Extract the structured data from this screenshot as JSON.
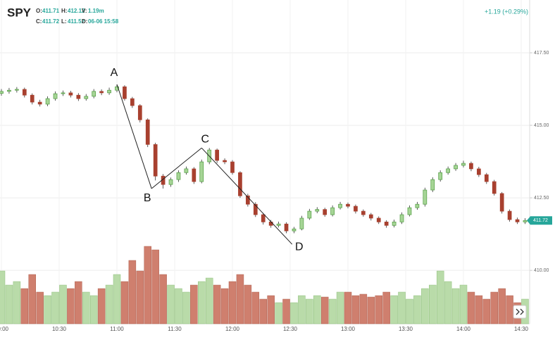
{
  "header": {
    "symbol": "SPY",
    "fields": [
      {
        "label": "O:",
        "value": "411.71"
      },
      {
        "label": "H:",
        "value": "412.12"
      },
      {
        "label": "V:",
        "value": "1.19m"
      },
      {
        "label": "C:",
        "value": "411.72"
      },
      {
        "label": "L:",
        "value": "411.52"
      },
      {
        "label": "D:",
        "value": "06-06 15:58"
      }
    ],
    "change": "+1.19 (+0.29%)"
  },
  "chart_data": {
    "type": "candlestick",
    "x": [
      "10:00",
      "10:04",
      "10:08",
      "10:12",
      "10:16",
      "10:20",
      "10:24",
      "10:28",
      "10:32",
      "10:36",
      "10:40",
      "10:44",
      "10:48",
      "10:52",
      "10:56",
      "11:00",
      "11:04",
      "11:08",
      "11:12",
      "11:16",
      "11:20",
      "11:24",
      "11:28",
      "11:32",
      "11:36",
      "11:40",
      "11:44",
      "11:48",
      "11:52",
      "11:56",
      "12:00",
      "12:04",
      "12:08",
      "12:12",
      "12:16",
      "12:20",
      "12:24",
      "12:28",
      "12:32",
      "12:36",
      "12:40",
      "12:44",
      "12:48",
      "12:52",
      "12:56",
      "13:00",
      "13:04",
      "13:08",
      "13:12",
      "13:16",
      "13:20",
      "13:24",
      "13:28",
      "13:32",
      "13:36",
      "13:40",
      "13:44",
      "13:48",
      "13:52",
      "13:56",
      "14:00",
      "14:04",
      "14:08",
      "14:12",
      "14:16",
      "14:20",
      "14:24",
      "14:28",
      "14:32"
    ],
    "open": [
      416.1,
      416.17,
      416.21,
      416.24,
      416.04,
      415.8,
      415.73,
      415.92,
      416.09,
      416.12,
      416.04,
      415.92,
      416.0,
      416.17,
      416.12,
      416.21,
      416.33,
      415.92,
      415.68,
      415.19,
      414.34,
      413.25,
      412.96,
      413.13,
      413.37,
      413.5,
      413.06,
      413.74,
      414.15,
      413.79,
      413.74,
      413.37,
      412.57,
      412.28,
      411.92,
      411.67,
      411.55,
      411.6,
      411.36,
      411.43,
      411.8,
      412.04,
      412.1,
      411.92,
      412.16,
      412.28,
      412.21,
      412.04,
      411.92,
      411.8,
      411.67,
      411.55,
      411.67,
      411.92,
      412.16,
      412.28,
      412.77,
      413.13,
      413.37,
      413.5,
      413.62,
      413.69,
      413.5,
      413.3,
      413.06,
      412.65,
      412.04,
      411.75,
      411.67
    ],
    "high": [
      416.25,
      416.29,
      416.32,
      416.3,
      416.1,
      415.88,
      416.0,
      416.17,
      416.2,
      416.19,
      416.11,
      416.08,
      416.25,
      416.24,
      416.3,
      416.41,
      416.38,
      415.98,
      415.73,
      415.24,
      414.4,
      413.32,
      413.2,
      413.45,
      413.58,
      413.56,
      413.82,
      414.22,
      414.2,
      413.86,
      413.8,
      413.42,
      412.64,
      412.35,
      411.98,
      411.74,
      411.68,
      411.66,
      411.5,
      411.88,
      412.12,
      412.18,
      412.16,
      412.24,
      412.36,
      412.34,
      412.27,
      412.1,
      411.98,
      411.86,
      411.73,
      411.75,
      412.0,
      412.24,
      412.36,
      412.85,
      413.21,
      413.45,
      413.58,
      413.7,
      413.78,
      413.75,
      413.57,
      413.36,
      413.12,
      412.7,
      412.1,
      411.82,
      411.8
    ],
    "low": [
      416.02,
      416.09,
      416.13,
      415.96,
      415.72,
      415.65,
      415.66,
      415.85,
      416.01,
      415.96,
      415.84,
      415.85,
      415.93,
      416.04,
      416.05,
      416.14,
      415.85,
      415.6,
      415.1,
      414.25,
      413.1,
      412.82,
      412.88,
      413.05,
      413.3,
      412.98,
      413.0,
      413.66,
      413.7,
      413.66,
      413.3,
      412.5,
      412.2,
      411.84,
      411.58,
      411.47,
      411.48,
      411.28,
      411.28,
      411.38,
      411.74,
      411.97,
      411.85,
      411.86,
      412.1,
      412.14,
      411.96,
      411.85,
      411.72,
      411.6,
      411.47,
      411.48,
      411.6,
      411.86,
      412.09,
      412.2,
      412.7,
      413.06,
      413.3,
      413.43,
      413.55,
      413.42,
      413.22,
      412.98,
      412.58,
      411.96,
      411.68,
      411.6,
      411.6
    ],
    "close": [
      416.17,
      416.21,
      416.24,
      416.04,
      415.8,
      415.73,
      415.92,
      416.09,
      416.12,
      416.04,
      415.92,
      416.0,
      416.17,
      416.12,
      416.21,
      416.33,
      415.92,
      415.68,
      415.19,
      414.34,
      413.25,
      412.96,
      413.13,
      413.37,
      413.5,
      413.06,
      413.74,
      414.15,
      413.79,
      413.74,
      413.37,
      412.57,
      412.28,
      411.92,
      411.67,
      411.55,
      411.6,
      411.36,
      411.43,
      411.8,
      412.04,
      412.1,
      411.92,
      412.16,
      412.28,
      412.21,
      412.04,
      411.92,
      411.8,
      411.67,
      411.55,
      411.67,
      411.92,
      412.16,
      412.28,
      412.77,
      413.13,
      413.37,
      413.5,
      413.62,
      413.69,
      413.5,
      413.3,
      413.06,
      412.65,
      412.04,
      411.75,
      411.67,
      411.72
    ],
    "volume": [
      75,
      55,
      60,
      50,
      70,
      45,
      40,
      45,
      55,
      50,
      60,
      45,
      40,
      50,
      55,
      70,
      60,
      90,
      75,
      110,
      105,
      70,
      55,
      50,
      45,
      55,
      60,
      65,
      55,
      50,
      60,
      70,
      55,
      45,
      35,
      40,
      30,
      35,
      30,
      40,
      35,
      40,
      38,
      35,
      45,
      45,
      40,
      42,
      38,
      40,
      45,
      40,
      45,
      35,
      40,
      50,
      55,
      75,
      60,
      50,
      55,
      45,
      40,
      35,
      45,
      50,
      40,
      30,
      35
    ],
    "ylim": [
      408.16,
      419.32
    ],
    "yticks": [
      {
        "value": 410,
        "label": "410.00"
      },
      {
        "value": 412.5,
        "label": "412.50"
      },
      {
        "value": 415,
        "label": "415.00"
      },
      {
        "value": 417.5,
        "label": "417.50"
      }
    ],
    "xticks": [
      "10:00",
      "10:30",
      "11:00",
      "11:30",
      "12:00",
      "12:30",
      "13:00",
      "13:30",
      "14:00",
      "14:30"
    ],
    "last_price": {
      "value": 411.72,
      "label": "411.72"
    },
    "annotations": [
      {
        "label": "A",
        "x": "11:00",
        "y": 416.41
      },
      {
        "label": "B",
        "x": "11:18",
        "y": 412.82
      },
      {
        "label": "C",
        "x": "11:44",
        "y": 414.22
      },
      {
        "label": "D",
        "x": "12:31",
        "y": 410.9
      }
    ],
    "up_color": "#4e9a3e",
    "down_color": "#a8402f",
    "grid": true
  }
}
